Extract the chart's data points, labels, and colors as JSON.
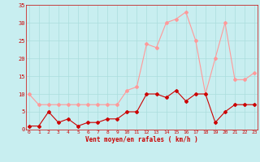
{
  "x": [
    0,
    1,
    2,
    3,
    4,
    5,
    6,
    7,
    8,
    9,
    10,
    11,
    12,
    13,
    14,
    15,
    16,
    17,
    18,
    19,
    20,
    21,
    22,
    23
  ],
  "wind_mean": [
    1,
    1,
    5,
    2,
    3,
    1,
    2,
    2,
    3,
    3,
    5,
    5,
    10,
    10,
    9,
    11,
    8,
    10,
    10,
    2,
    5,
    7,
    7,
    7
  ],
  "wind_gust": [
    10,
    7,
    7,
    7,
    7,
    7,
    7,
    7,
    7,
    7,
    11,
    12,
    24,
    23,
    30,
    31,
    33,
    25,
    10,
    20,
    30,
    14,
    14,
    16
  ],
  "mean_color": "#cc0000",
  "gust_color": "#ff9999",
  "bg_color": "#c8eef0",
  "grid_color": "#aadddd",
  "xlabel": "Vent moyen/en rafales ( km/h )",
  "ylim_min": 0,
  "ylim_max": 35,
  "ytick_vals": [
    0,
    5,
    10,
    15,
    20,
    25,
    30,
    35
  ],
  "xtick_vals": [
    0,
    1,
    2,
    3,
    4,
    5,
    6,
    7,
    8,
    9,
    10,
    11,
    12,
    13,
    14,
    15,
    16,
    17,
    18,
    19,
    20,
    21,
    22,
    23
  ]
}
